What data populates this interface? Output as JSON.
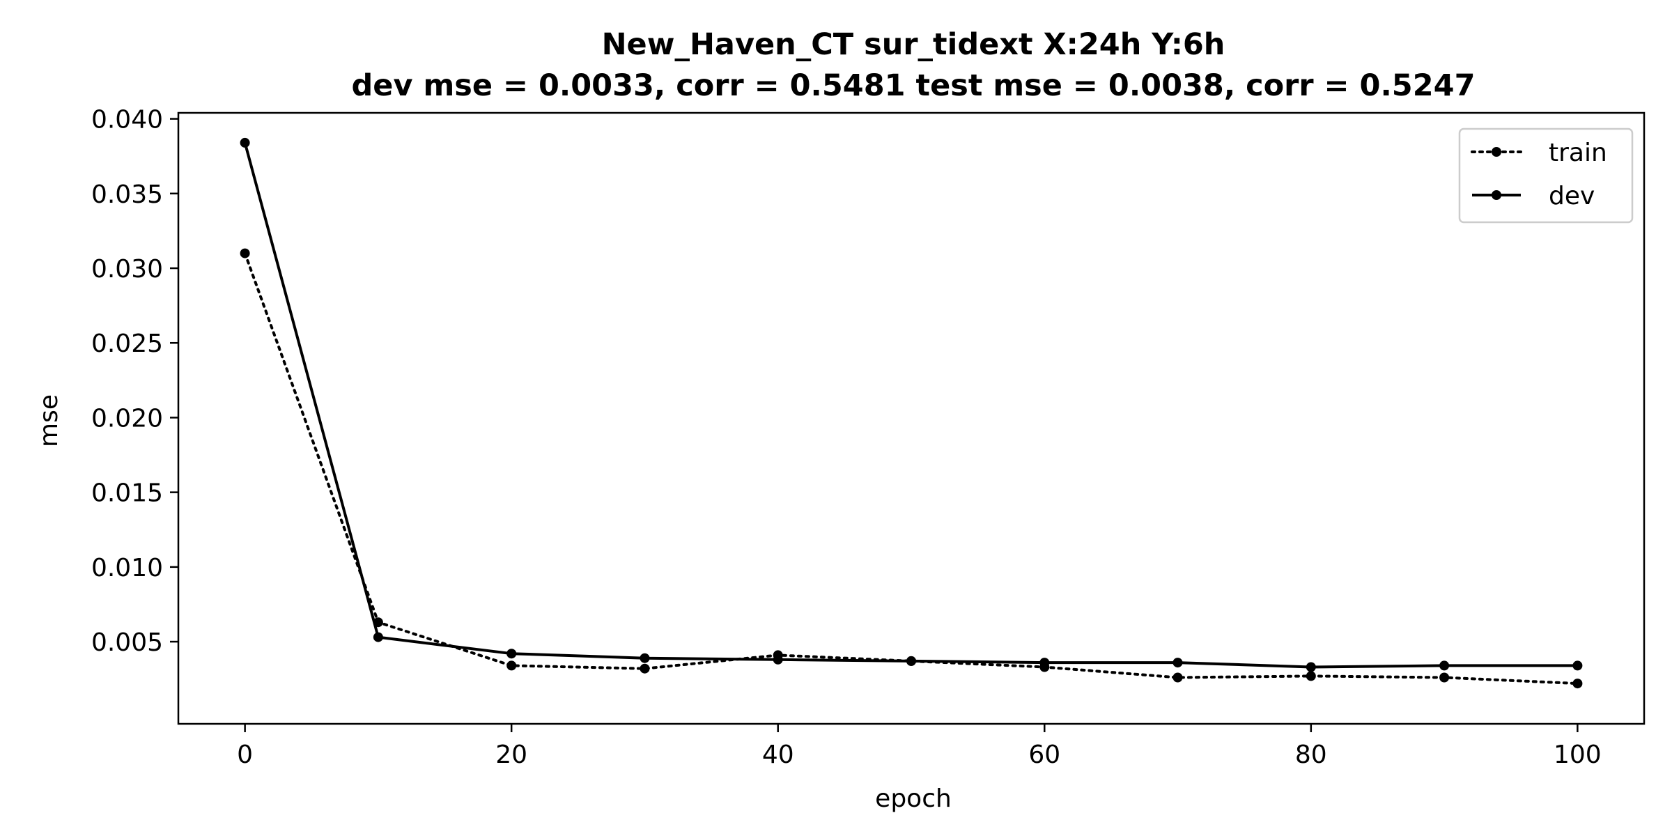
{
  "chart_data": {
    "type": "line",
    "title": "New_Haven_CT   sur_tidext   X:24h   Y:6h",
    "subtitle": "dev mse = 0.0033, corr = 0.5481   test mse = 0.0038, corr = 0.5247",
    "xlabel": "epoch",
    "ylabel": "mse",
    "x": [
      0,
      10,
      20,
      30,
      40,
      50,
      60,
      70,
      80,
      90,
      100
    ],
    "xlim": [
      -5,
      105
    ],
    "ylim": [
      -0.0005,
      0.0404
    ],
    "xticks": [
      0,
      20,
      40,
      60,
      80,
      100
    ],
    "xtick_labels": [
      "0",
      "20",
      "40",
      "60",
      "80",
      "100"
    ],
    "yticks": [
      0.005,
      0.01,
      0.015,
      0.02,
      0.025,
      0.03,
      0.035,
      0.04
    ],
    "ytick_labels": [
      "0.005",
      "0.010",
      "0.015",
      "0.020",
      "0.025",
      "0.030",
      "0.035",
      "0.040"
    ],
    "grid": false,
    "legend_position": "top-right",
    "series": [
      {
        "name": "train",
        "style": "dotted",
        "color": "#000000",
        "values": [
          0.031,
          0.0063,
          0.0034,
          0.0032,
          0.0041,
          0.0037,
          0.0033,
          0.0026,
          0.0027,
          0.0026,
          0.0022
        ]
      },
      {
        "name": "dev",
        "style": "solid",
        "color": "#000000",
        "values": [
          0.0384,
          0.0053,
          0.0042,
          0.0039,
          0.0038,
          0.0037,
          0.0036,
          0.0036,
          0.0033,
          0.0034,
          0.0034
        ]
      }
    ]
  }
}
